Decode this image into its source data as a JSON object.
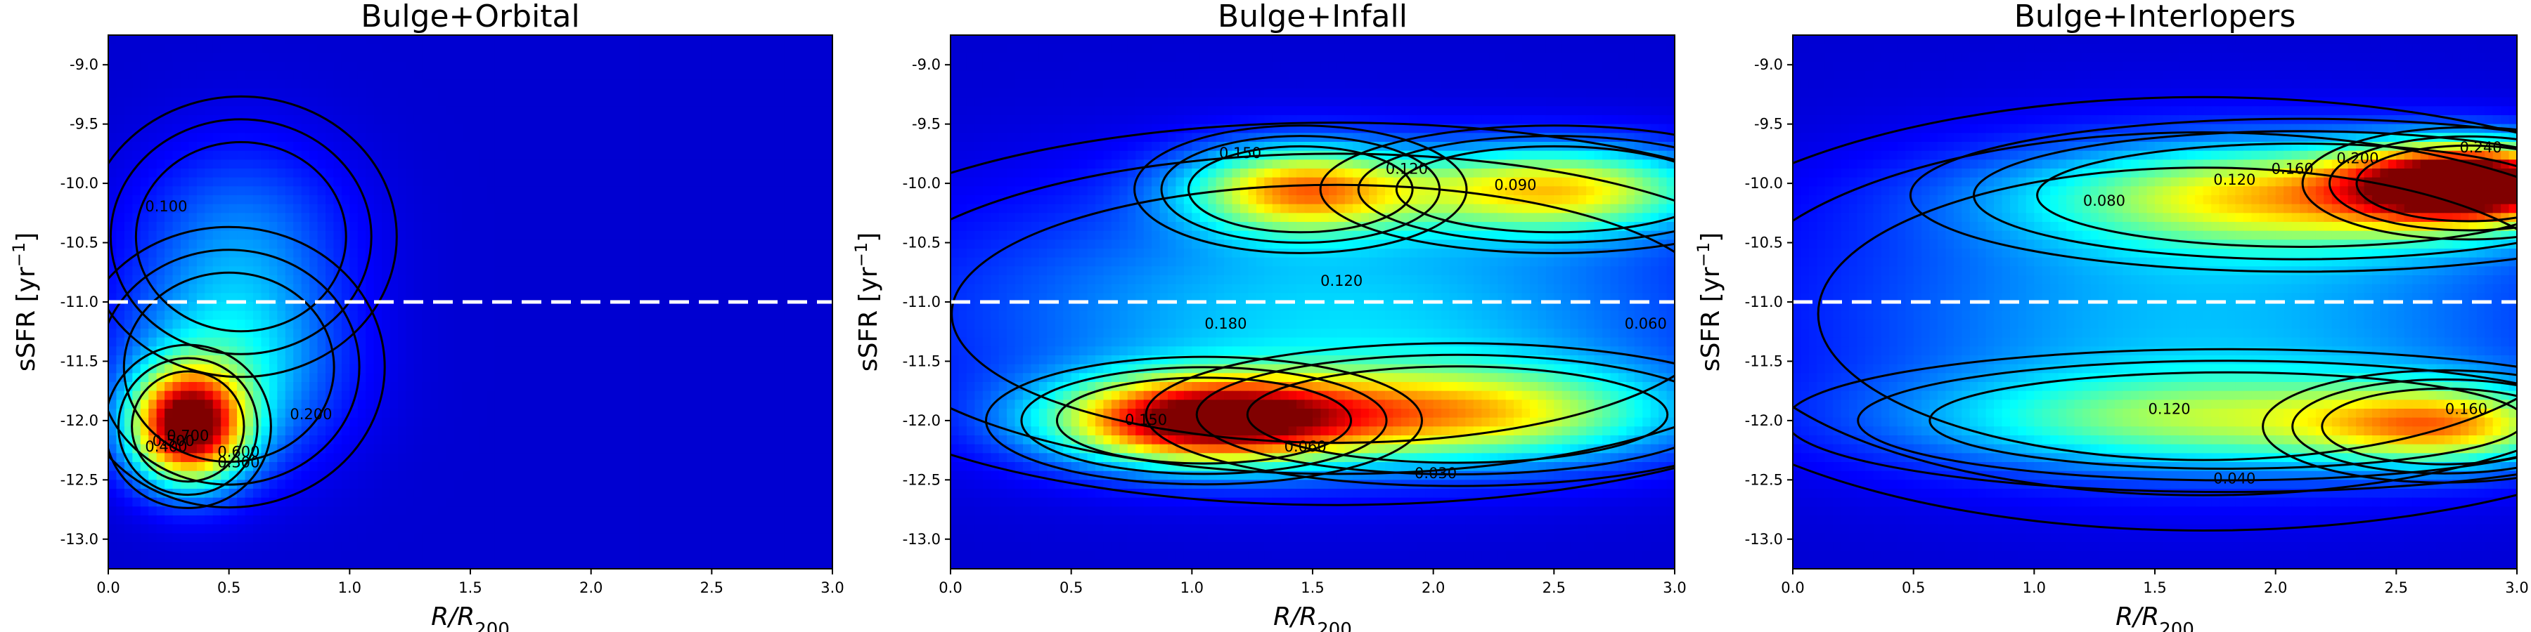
{
  "chart_data": [
    {
      "type": "heatmap",
      "title": "Bulge+Orbital",
      "xlabel": "R/R",
      "xlabel_sub": "200",
      "ylabel": "sSFR [yr",
      "ylabel_sup": "−1",
      "ylabel_end": "]",
      "xlim": [
        0.0,
        3.0
      ],
      "ylim": [
        -13.25,
        -8.75
      ],
      "xticks": [
        "0.0",
        "0.5",
        "1.0",
        "1.5",
        "2.0",
        "2.5",
        "3.0"
      ],
      "yticks": [
        "-9.0",
        "-9.5",
        "-10.0",
        "-10.5",
        "-11.0",
        "-11.5",
        "-12.0",
        "-12.5",
        "-13.0"
      ],
      "colormap": "jet",
      "threshold_line": {
        "y": -11.0,
        "style": "dashed",
        "color": "#ffffff"
      },
      "density_peaks": [
        {
          "x": 0.33,
          "y": -12.05,
          "sx": 0.16,
          "sy": 0.32,
          "amp": 1.0
        },
        {
          "x": 0.5,
          "y": -11.55,
          "sx": 0.3,
          "sy": 0.55,
          "amp": 0.3
        },
        {
          "x": 0.55,
          "y": -10.45,
          "sx": 0.3,
          "sy": 0.55,
          "amp": 0.17
        }
      ],
      "contour_labels": [
        "0.100",
        "0.200",
        "0.300",
        "0.400",
        "0.500",
        "0.600",
        "0.700"
      ]
    },
    {
      "type": "heatmap",
      "title": "Bulge+Infall",
      "xlabel": "R/R",
      "xlabel_sub": "200",
      "ylabel": "sSFR [yr",
      "ylabel_sup": "−1",
      "ylabel_end": "]",
      "xlim": [
        0.0,
        3.0
      ],
      "ylim": [
        -13.25,
        -8.75
      ],
      "xticks": [
        "0.0",
        "0.5",
        "1.0",
        "1.5",
        "2.0",
        "2.5",
        "3.0"
      ],
      "yticks": [
        "-9.0",
        "-9.5",
        "-10.0",
        "-10.5",
        "-11.0",
        "-11.5",
        "-12.0",
        "-12.5",
        "-13.0"
      ],
      "colormap": "jet",
      "threshold_line": {
        "y": -11.0,
        "style": "dashed",
        "color": "#ffffff"
      },
      "density_peaks": [
        {
          "x": 1.05,
          "y": -12.0,
          "sx": 0.42,
          "sy": 0.25,
          "amp": 0.95
        },
        {
          "x": 2.1,
          "y": -11.95,
          "sx": 0.6,
          "sy": 0.28,
          "amp": 0.55
        },
        {
          "x": 1.45,
          "y": -10.05,
          "sx": 0.32,
          "sy": 0.25,
          "amp": 0.62
        },
        {
          "x": 2.5,
          "y": -10.05,
          "sx": 0.45,
          "sy": 0.25,
          "amp": 0.58
        },
        {
          "x": 1.6,
          "y": -11.1,
          "sx": 1.1,
          "sy": 0.75,
          "amp": 0.28
        }
      ],
      "contour_labels": [
        "0.150",
        "0.120",
        "0.090",
        "0.120",
        "0.180",
        "0.150",
        "0.060",
        "0.030",
        "0.060"
      ]
    },
    {
      "type": "heatmap",
      "title": "Bulge+Interlopers",
      "xlabel": "R/R",
      "xlabel_sub": "200",
      "ylabel": "sSFR [yr",
      "ylabel_sup": "−1",
      "ylabel_end": "]",
      "xlim": [
        0.0,
        3.0
      ],
      "ylim": [
        -13.25,
        -8.75
      ],
      "xticks": [
        "0.0",
        "0.5",
        "1.0",
        "1.5",
        "2.0",
        "2.5",
        "3.0"
      ],
      "yticks": [
        "-9.0",
        "-9.5",
        "-10.0",
        "-10.5",
        "-11.0",
        "-11.5",
        "-12.0",
        "-12.5",
        "-13.0"
      ],
      "colormap": "jet",
      "threshold_line": {
        "y": -11.0,
        "style": "dashed",
        "color": "#ffffff"
      },
      "density_peaks": [
        {
          "x": 2.8,
          "y": -10.0,
          "sx": 0.32,
          "sy": 0.22,
          "amp": 1.0
        },
        {
          "x": 2.1,
          "y": -10.1,
          "sx": 0.75,
          "sy": 0.3,
          "amp": 0.55
        },
        {
          "x": 2.7,
          "y": -12.05,
          "sx": 0.35,
          "sy": 0.22,
          "amp": 0.45
        },
        {
          "x": 1.8,
          "y": -12.0,
          "sx": 0.85,
          "sy": 0.28,
          "amp": 0.38
        },
        {
          "x": 1.7,
          "y": -11.1,
          "sx": 1.1,
          "sy": 0.85,
          "amp": 0.25
        }
      ],
      "contour_labels": [
        "0.080",
        "0.120",
        "0.160",
        "0.200",
        "0.240",
        "0.120",
        "0.160",
        "0.040"
      ]
    }
  ]
}
